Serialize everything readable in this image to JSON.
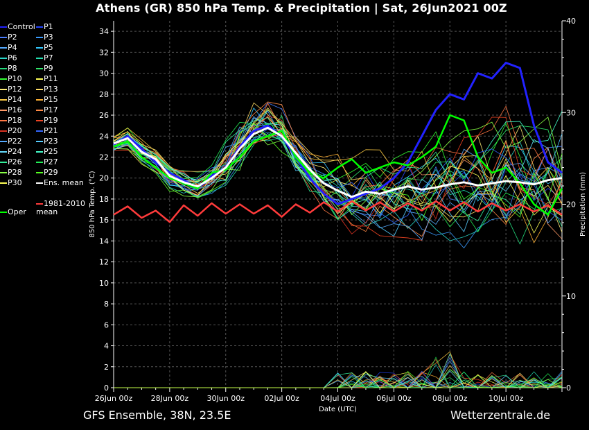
{
  "title": "Athens  (GR)  850 hPa Temp. & Precipitation | Sat, 26Jun2021 00Z",
  "footer": {
    "model": "GFS Ensemble, 38N, 23.5E",
    "source": "Wetterzentrale.de"
  },
  "colors": {
    "background": "#000000",
    "grid": "#555555",
    "axis": "#ffffff",
    "ens_mean": "#ffffff",
    "climate_mean": "#ff3b3b",
    "oper": "#00ff00",
    "control": "#2222ff"
  },
  "legend": [
    {
      "label": "Control",
      "color": "#2222ff"
    },
    {
      "label": "P1",
      "color": "#2244ff"
    },
    {
      "label": "P2",
      "color": "#4a7dff"
    },
    {
      "label": "P3",
      "color": "#3a9bff"
    },
    {
      "label": "P4",
      "color": "#55aaff"
    },
    {
      "label": "P5",
      "color": "#33c8ff"
    },
    {
      "label": "P6",
      "color": "#29d6c8"
    },
    {
      "label": "P7",
      "color": "#22e0b0"
    },
    {
      "label": "P8",
      "color": "#22d97a"
    },
    {
      "label": "P9",
      "color": "#2fe86a"
    },
    {
      "label": "P10",
      "color": "#33ff33"
    },
    {
      "label": "P11",
      "color": "#ffff55"
    },
    {
      "label": "P12",
      "color": "#ffee77"
    },
    {
      "label": "P13",
      "color": "#ffdd66"
    },
    {
      "label": "P14",
      "color": "#ffcc44"
    },
    {
      "label": "P15",
      "color": "#ffb033"
    },
    {
      "label": "P16",
      "color": "#ff9966"
    },
    {
      "label": "P17",
      "color": "#ff8844"
    },
    {
      "label": "P18",
      "color": "#ff7744"
    },
    {
      "label": "P19",
      "color": "#ee4422"
    },
    {
      "label": "P20",
      "color": "#dd3322"
    },
    {
      "label": "P21",
      "color": "#3366ff"
    },
    {
      "label": "P22",
      "color": "#55aaff"
    },
    {
      "label": "P23",
      "color": "#55ccff"
    },
    {
      "label": "P24",
      "color": "#66ddff"
    },
    {
      "label": "P25",
      "color": "#44ffcc"
    },
    {
      "label": "P26",
      "color": "#33ee99"
    },
    {
      "label": "P27",
      "color": "#22ee55"
    },
    {
      "label": "P28",
      "color": "#88ff44"
    },
    {
      "label": "P29",
      "color": "#55ff22"
    },
    {
      "label": "P30",
      "color": "#ffff55"
    },
    {
      "label": "Ens. mean",
      "color": "#ffffff"
    },
    {
      "label": "1981-2010 mean",
      "color": "#ff3b3b"
    },
    {
      "label": "Oper",
      "color": "#00ff00"
    }
  ],
  "chart_data": {
    "type": "line",
    "xlabel": "Date (UTC)",
    "ylabel": "850 hPa Temp. (°C)",
    "y2label": "Precipitation (mm)",
    "ylim": [
      0,
      35
    ],
    "y2lim": [
      0,
      40
    ],
    "yticks": [
      0,
      2,
      4,
      6,
      8,
      10,
      12,
      14,
      16,
      18,
      20,
      22,
      24,
      26,
      28,
      30,
      32,
      34
    ],
    "y2ticks": [
      0,
      10,
      20,
      30,
      40
    ],
    "xlim": [
      0,
      384
    ],
    "xtick_labels": [
      "26Jun 00z",
      "28Jun 00z",
      "30Jun 00z",
      "02Jul 00z",
      "04Jul 00z",
      "06Jul 00z",
      "08Jul 00z",
      "10Jul 00z"
    ],
    "xtick_hours": [
      0,
      48,
      96,
      144,
      192,
      240,
      288,
      336
    ],
    "grid": true,
    "series": [
      {
        "name": "Ens. mean",
        "hours": [
          0,
          12,
          24,
          36,
          48,
          60,
          72,
          84,
          96,
          108,
          120,
          132,
          144,
          156,
          168,
          180,
          192,
          204,
          216,
          228,
          240,
          252,
          264,
          276,
          288,
          300,
          312,
          324,
          336,
          348,
          360,
          372,
          384
        ],
        "values": [
          23.3,
          23.8,
          22.5,
          21.8,
          20.2,
          19.6,
          19.2,
          20.0,
          21.0,
          22.8,
          24.2,
          24.8,
          24.0,
          22.4,
          20.8,
          19.5,
          18.8,
          18.2,
          18.7,
          18.5,
          18.9,
          19.2,
          18.9,
          19.1,
          19.4,
          19.6,
          19.3,
          19.5,
          19.7,
          19.6,
          19.4,
          19.8,
          20.0
        ]
      },
      {
        "name": "Oper",
        "hours": [
          0,
          12,
          24,
          36,
          48,
          60,
          72,
          84,
          96,
          108,
          120,
          132,
          144,
          156,
          168,
          180,
          192,
          204,
          216,
          228,
          240,
          252,
          264,
          276,
          288,
          300,
          312,
          324,
          336,
          348,
          360,
          372,
          384
        ],
        "values": [
          23.0,
          23.5,
          22.0,
          21.0,
          20.0,
          19.5,
          19.0,
          20.5,
          20.8,
          22.0,
          23.5,
          24.0,
          24.5,
          22.0,
          20.5,
          20.0,
          21.0,
          21.8,
          20.5,
          21.0,
          21.5,
          21.2,
          22.0,
          23.0,
          26.0,
          25.5,
          22.0,
          20.5,
          21.0,
          19.5,
          17.5,
          16.5,
          19.0
        ]
      },
      {
        "name": "Control",
        "hours": [
          0,
          12,
          24,
          36,
          48,
          60,
          72,
          84,
          96,
          108,
          120,
          132,
          144,
          156,
          168,
          180,
          192,
          204,
          216,
          228,
          240,
          252,
          264,
          276,
          288,
          300,
          312,
          324,
          336,
          348,
          360,
          372,
          384
        ],
        "values": [
          23.2,
          24.0,
          22.8,
          21.5,
          20.5,
          19.8,
          19.0,
          20.2,
          21.0,
          23.0,
          24.5,
          25.0,
          24.0,
          22.0,
          20.0,
          18.5,
          17.5,
          18.0,
          18.5,
          19.0,
          20.0,
          21.5,
          24.0,
          26.5,
          28.0,
          27.5,
          30.0,
          29.5,
          31.0,
          30.5,
          25.0,
          21.5,
          20.5
        ]
      },
      {
        "name": "1981-2010 mean",
        "hours": [
          0,
          12,
          24,
          36,
          48,
          60,
          72,
          84,
          96,
          108,
          120,
          132,
          144,
          156,
          168,
          180,
          192,
          204,
          216,
          228,
          240,
          252,
          264,
          276,
          288,
          300,
          312,
          324,
          336,
          348,
          360,
          372,
          384
        ],
        "values": [
          16.5,
          17.3,
          16.2,
          16.9,
          15.8,
          17.4,
          16.4,
          17.6,
          16.6,
          17.5,
          16.6,
          17.4,
          16.3,
          17.5,
          16.7,
          17.7,
          16.8,
          17.8,
          16.9,
          17.7,
          16.8,
          17.6,
          16.9,
          17.8,
          16.9,
          17.7,
          16.8,
          17.6,
          16.9,
          17.5,
          16.8,
          17.4,
          16.5
        ]
      }
    ],
    "precip_max_mm": 4.0
  }
}
